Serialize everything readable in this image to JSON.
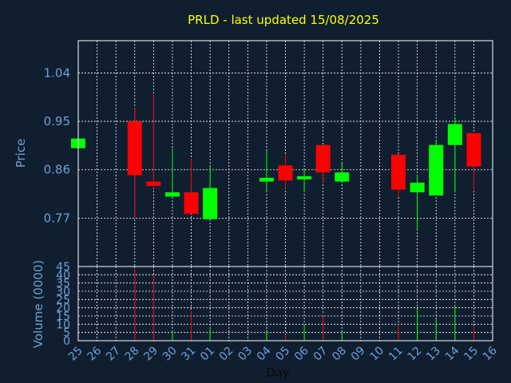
{
  "chart_data": {
    "type": "candlestick",
    "title": "PRLD - last updated 15/08/2025",
    "ylabel": "Price",
    "volume_label": "Volume (0000)",
    "xlabel": "Day",
    "x_tick_labels": [
      "25",
      "26",
      "27",
      "28",
      "29",
      "30",
      "31",
      "01",
      "02",
      "03",
      "04",
      "05",
      "06",
      "07",
      "08",
      "09",
      "10",
      "11",
      "12",
      "13",
      "14",
      "15",
      "16"
    ],
    "y_ticks": [
      "1.04",
      "0.95",
      "0.86",
      "0.77"
    ],
    "volume_ticks": [
      "45",
      "40",
      "35",
      "30",
      "25",
      "20",
      "15",
      "10",
      "5",
      "0"
    ],
    "price_range": [
      0.68,
      1.1
    ],
    "volume_range": [
      0,
      45
    ],
    "up_color": "#00ff00",
    "down_color": "#ff0000",
    "grid": true,
    "candles": [
      {
        "day": "25",
        "open": 0.9,
        "close": 0.918,
        "high": 0.918,
        "low": 0.9,
        "volume": 0
      },
      {
        "day": "28",
        "open": 0.95,
        "close": 0.85,
        "high": 0.975,
        "low": 0.77,
        "volume": 43
      },
      {
        "day": "29",
        "open": 0.838,
        "close": 0.83,
        "high": 1.0,
        "low": 0.825,
        "volume": 40
      },
      {
        "day": "30",
        "open": 0.81,
        "close": 0.818,
        "high": 0.9,
        "low": 0.81,
        "volume": 6
      },
      {
        "day": "31",
        "open": 0.818,
        "close": 0.778,
        "high": 0.88,
        "low": 0.778,
        "volume": 18
      },
      {
        "day": "01",
        "open": 0.768,
        "close": 0.826,
        "high": 0.866,
        "low": 0.768,
        "volume": 8
      },
      {
        "day": "04",
        "open": 0.838,
        "close": 0.845,
        "high": 0.895,
        "low": 0.82,
        "volume": 6
      },
      {
        "day": "05",
        "open": 0.868,
        "close": 0.84,
        "high": 0.888,
        "low": 0.825,
        "volume": 4
      },
      {
        "day": "06",
        "open": 0.842,
        "close": 0.848,
        "high": 0.86,
        "low": 0.818,
        "volume": 10
      },
      {
        "day": "07",
        "open": 0.906,
        "close": 0.855,
        "high": 0.906,
        "low": 0.835,
        "volume": 16
      },
      {
        "day": "08",
        "open": 0.838,
        "close": 0.855,
        "high": 0.872,
        "low": 0.838,
        "volume": 5
      },
      {
        "day": "11",
        "open": 0.888,
        "close": 0.823,
        "high": 0.888,
        "low": 0.81,
        "volume": 10
      },
      {
        "day": "12",
        "open": 0.818,
        "close": 0.836,
        "high": 0.85,
        "low": 0.748,
        "volume": 19
      },
      {
        "day": "13",
        "open": 0.812,
        "close": 0.906,
        "high": 0.916,
        "low": 0.812,
        "volume": 13
      },
      {
        "day": "14",
        "open": 0.906,
        "close": 0.945,
        "high": 0.958,
        "low": 0.818,
        "volume": 21
      },
      {
        "day": "15",
        "open": 0.928,
        "close": 0.866,
        "high": 0.928,
        "low": 0.82,
        "volume": 9
      }
    ]
  }
}
